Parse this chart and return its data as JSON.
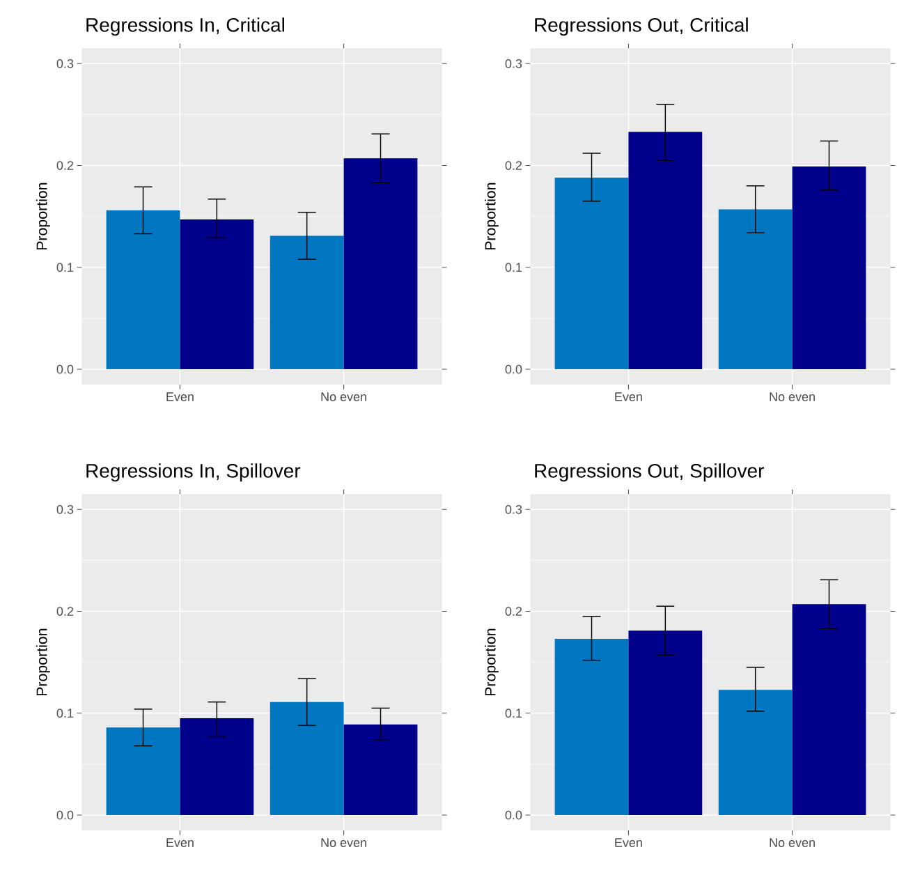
{
  "chart_data": [
    {
      "type": "bar",
      "title": "Regressions In, Critical",
      "ylabel": "Proportion",
      "categories": [
        "Even",
        "No even"
      ],
      "ylim": [
        -0.015,
        0.315
      ],
      "yticks": [
        {
          "value": 0,
          "label": "0.0"
        },
        {
          "value": 0.1,
          "label": "0.1"
        },
        {
          "value": 0.2,
          "label": "0.2"
        },
        {
          "value": 0.3,
          "label": "0.3"
        }
      ],
      "grid": true,
      "series": [
        {
          "color": "#0077c0",
          "values": [
            0.156,
            0.131
          ],
          "errors": [
            [
              0.133,
              0.179
            ],
            [
              0.108,
              0.154
            ]
          ]
        },
        {
          "color": "#00008b",
          "values": [
            0.147,
            0.207
          ],
          "errors": [
            [
              0.129,
              0.167
            ],
            [
              0.183,
              0.231
            ]
          ]
        }
      ]
    },
    {
      "type": "bar",
      "title": "Regressions Out, Critical",
      "ylabel": "Proportion",
      "categories": [
        "Even",
        "No even"
      ],
      "ylim": [
        -0.015,
        0.315
      ],
      "yticks": [
        {
          "value": 0,
          "label": "0.0"
        },
        {
          "value": 0.1,
          "label": "0.1"
        },
        {
          "value": 0.2,
          "label": "0.2"
        },
        {
          "value": 0.3,
          "label": "0.3"
        }
      ],
      "grid": true,
      "series": [
        {
          "color": "#0077c0",
          "values": [
            0.188,
            0.157
          ],
          "errors": [
            [
              0.165,
              0.212
            ],
            [
              0.134,
              0.18
            ]
          ]
        },
        {
          "color": "#00008b",
          "values": [
            0.233,
            0.199
          ],
          "errors": [
            [
              0.205,
              0.26
            ],
            [
              0.176,
              0.224
            ]
          ]
        }
      ]
    },
    {
      "type": "bar",
      "title": "Regressions In, Spillover",
      "ylabel": "Proportion",
      "categories": [
        "Even",
        "No even"
      ],
      "ylim": [
        -0.015,
        0.315
      ],
      "yticks": [
        {
          "value": 0,
          "label": "0.0"
        },
        {
          "value": 0.1,
          "label": "0.1"
        },
        {
          "value": 0.2,
          "label": "0.2"
        },
        {
          "value": 0.3,
          "label": "0.3"
        }
      ],
      "grid": true,
      "series": [
        {
          "color": "#0077c0",
          "values": [
            0.086,
            0.111
          ],
          "errors": [
            [
              0.068,
              0.104
            ],
            [
              0.088,
              0.134
            ]
          ]
        },
        {
          "color": "#00008b",
          "values": [
            0.095,
            0.089
          ],
          "errors": [
            [
              0.077,
              0.111
            ],
            [
              0.074,
              0.105
            ]
          ]
        }
      ]
    },
    {
      "type": "bar",
      "title": "Regressions Out, Spillover",
      "ylabel": "Proportion",
      "categories": [
        "Even",
        "No even"
      ],
      "ylim": [
        -0.015,
        0.315
      ],
      "yticks": [
        {
          "value": 0,
          "label": "0.0"
        },
        {
          "value": 0.1,
          "label": "0.1"
        },
        {
          "value": 0.2,
          "label": "0.2"
        },
        {
          "value": 0.3,
          "label": "0.3"
        }
      ],
      "grid": true,
      "series": [
        {
          "color": "#0077c0",
          "values": [
            0.173,
            0.123
          ],
          "errors": [
            [
              0.152,
              0.195
            ],
            [
              0.102,
              0.145
            ]
          ]
        },
        {
          "color": "#00008b",
          "values": [
            0.181,
            0.207
          ],
          "errors": [
            [
              0.157,
              0.205
            ],
            [
              0.183,
              0.231
            ]
          ]
        }
      ]
    }
  ]
}
